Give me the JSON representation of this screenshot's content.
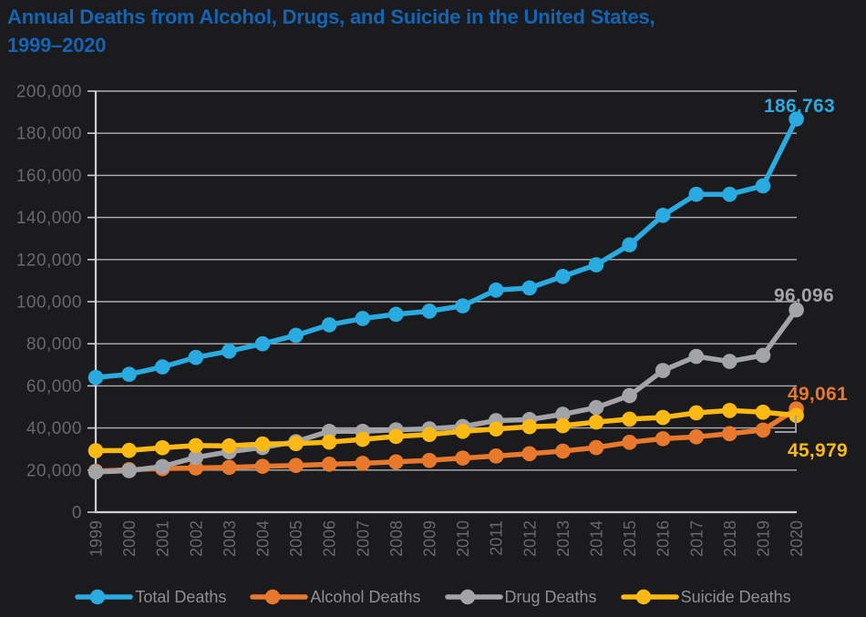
{
  "title": {
    "line1": "Annual Deaths from Alcohol, Drugs, and Suicide in the United States,",
    "line2": "1999–2020"
  },
  "colors": {
    "background": "#1B1B1D",
    "title": "#1464B4",
    "grid": "#C9CBCD",
    "axis": "#CDD0D2",
    "tick_label": "#66686B",
    "legend_text": "#8E9093",
    "leader_line": "#9A9CA0"
  },
  "chart_data": {
    "type": "line",
    "title": "Annual Deaths from Alcohol, Drugs, and Suicide in the United States, 1999–2020",
    "xlabel": "",
    "ylabel": "",
    "ylim": [
      0,
      200000
    ],
    "grid": true,
    "legend_position": "bottom",
    "x": [
      "1999",
      "2000",
      "2001",
      "2002",
      "2003",
      "2004",
      "2005",
      "2006",
      "2007",
      "2008",
      "2009",
      "2010",
      "2011",
      "2012",
      "2013",
      "2014",
      "2015",
      "2016",
      "2017",
      "2018",
      "2019",
      "2020"
    ],
    "y_ticks": [
      {
        "value": 0,
        "label": "0"
      },
      {
        "value": 20000,
        "label": "20,000"
      },
      {
        "value": 40000,
        "label": "40,000"
      },
      {
        "value": 60000,
        "label": "60,000"
      },
      {
        "value": 80000,
        "label": "80,000"
      },
      {
        "value": 100000,
        "label": "100,000"
      },
      {
        "value": 120000,
        "label": "120,000"
      },
      {
        "value": 140000,
        "label": "140,000"
      },
      {
        "value": 160000,
        "label": "160,000"
      },
      {
        "value": 180000,
        "label": "180,000"
      },
      {
        "value": 200000,
        "label": "200,000"
      }
    ],
    "series": [
      {
        "name": "Total Deaths",
        "color": "#29ABE2",
        "end_label": "186,763",
        "values": [
          64000,
          65500,
          69000,
          73500,
          76500,
          80000,
          84000,
          89000,
          92000,
          94000,
          95500,
          98000,
          105500,
          106500,
          112000,
          117500,
          127000,
          141000,
          151000,
          151000,
          155000,
          186763
        ]
      },
      {
        "name": "Alcohol Deaths",
        "color": "#E8782C",
        "end_label": "49,061",
        "values": [
          19469,
          20204,
          20700,
          21000,
          21300,
          21800,
          22200,
          22800,
          23200,
          23900,
          24600,
          25700,
          26700,
          27800,
          29000,
          30700,
          33200,
          34900,
          35800,
          37300,
          39000,
          49061
        ]
      },
      {
        "name": "Drug Deaths",
        "color": "#A2A4A7",
        "end_label": "96,096",
        "values": [
          19128,
          19700,
          21700,
          26000,
          28700,
          30700,
          33500,
          38400,
          38400,
          39100,
          39600,
          40700,
          43500,
          44000,
          46500,
          49700,
          55400,
          67300,
          74000,
          71600,
          74500,
          96096
        ]
      },
      {
        "name": "Suicide Deaths",
        "color": "#FDB913",
        "end_label": "45,979",
        "values": [
          29199,
          29350,
          30622,
          31655,
          31500,
          32400,
          32600,
          33300,
          34600,
          36000,
          36900,
          38400,
          39500,
          40600,
          41100,
          42800,
          44200,
          45000,
          47200,
          48300,
          47500,
          45979
        ]
      }
    ]
  }
}
